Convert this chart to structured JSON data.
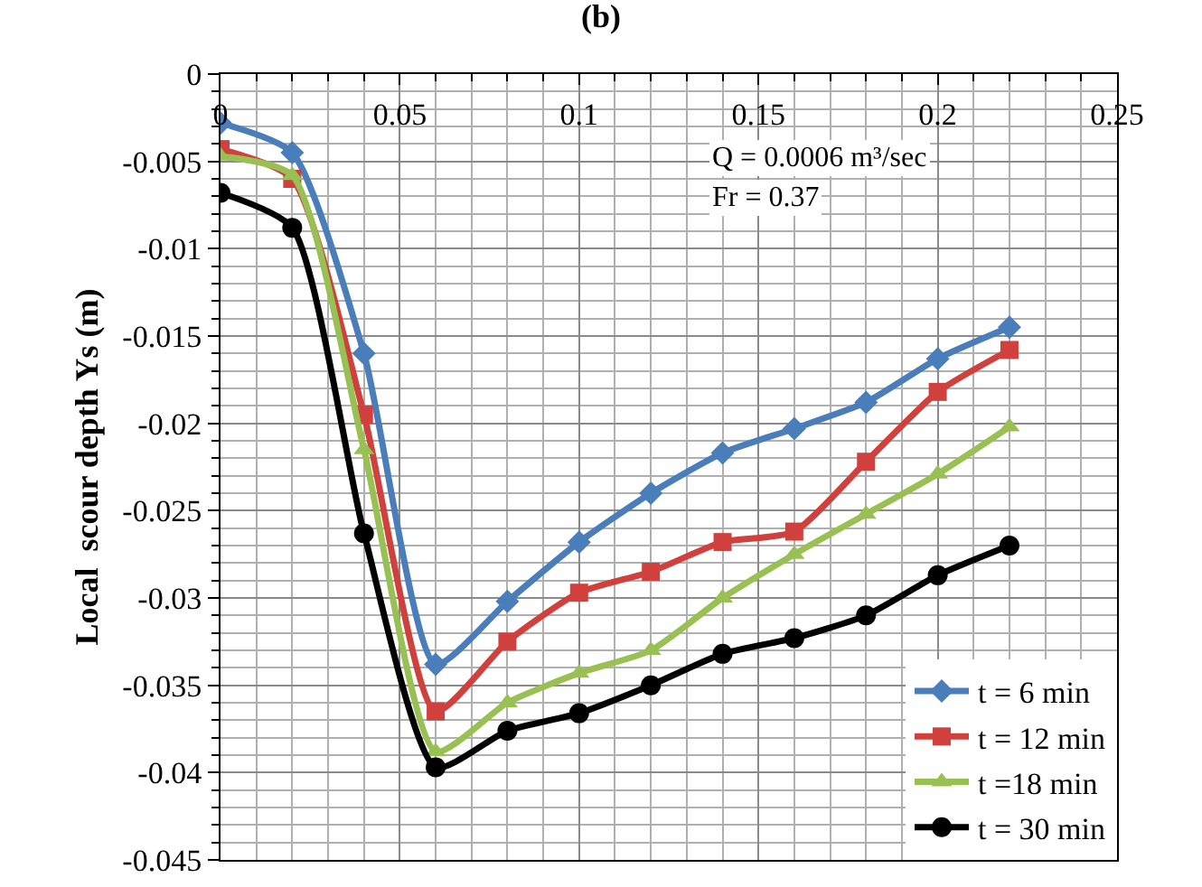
{
  "chart_data": {
    "type": "line",
    "title": "(b)",
    "ylabel": "Local  scour depth Ys (m)",
    "annotations": [
      "Q = 0.0006 m³/sec",
      "Fr = 0.37"
    ],
    "x": [
      0,
      0.02,
      0.04,
      0.06,
      0.08,
      0.1,
      0.12,
      0.14,
      0.16,
      0.18,
      0.2,
      0.22
    ],
    "series": [
      {
        "name": "t = 6 min",
        "color": "#4a7ebb",
        "marker": "diamond",
        "values": [
          -0.0028,
          -0.0045,
          -0.016,
          -0.0338,
          -0.0302,
          -0.0268,
          -0.024,
          -0.0217,
          -0.0203,
          -0.0188,
          -0.0163,
          -0.0145
        ]
      },
      {
        "name": "t = 12 min",
        "color": "#d0413e",
        "marker": "square",
        "values": [
          -0.0043,
          -0.006,
          -0.0195,
          -0.0365,
          -0.0325,
          -0.0297,
          -0.0285,
          -0.0268,
          -0.0262,
          -0.0222,
          -0.0182,
          -0.0158
        ]
      },
      {
        "name": "t =18 min",
        "color": "#98c052",
        "marker": "triangle",
        "values": [
          -0.0047,
          -0.0058,
          -0.0215,
          -0.0388,
          -0.036,
          -0.0343,
          -0.033,
          -0.03,
          -0.0275,
          -0.0252,
          -0.0229,
          -0.0202
        ]
      },
      {
        "name": "t = 30 min",
        "color": "#000000",
        "marker": "circle",
        "values": [
          -0.0068,
          -0.0088,
          -0.0263,
          -0.0397,
          -0.0376,
          -0.0366,
          -0.035,
          -0.0332,
          -0.0323,
          -0.031,
          -0.0287,
          -0.027
        ]
      }
    ],
    "xlim": [
      0,
      0.25
    ],
    "xticks": [
      0,
      0.05,
      0.1,
      0.15,
      0.2,
      0.25
    ],
    "ylim": [
      -0.045,
      0
    ],
    "yticks": [
      0,
      -0.005,
      -0.01,
      -0.015,
      -0.02,
      -0.025,
      -0.03,
      -0.035,
      -0.04,
      -0.045
    ],
    "grid": true,
    "legend": "bottom right",
    "line_style": "solid"
  }
}
